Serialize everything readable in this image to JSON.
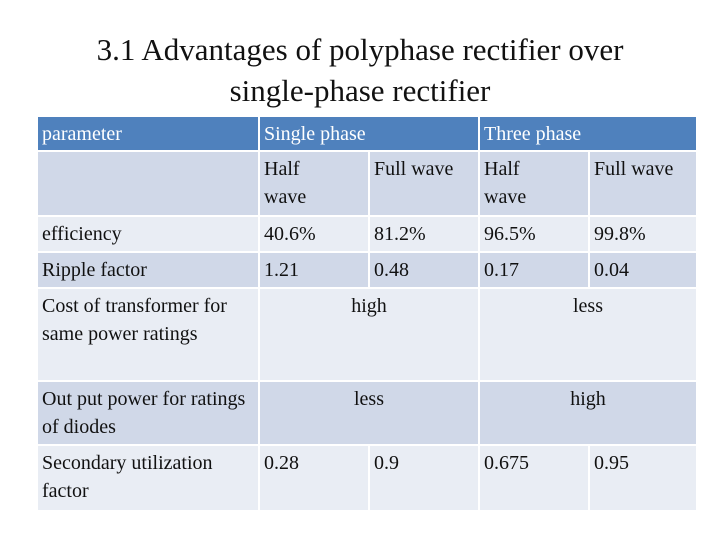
{
  "title": {
    "line1": "3.1 Advantages of polyphase rectifier over",
    "line2": "single-phase rectifier"
  },
  "table": {
    "header": [
      "parameter",
      "Single phase",
      "Three phase"
    ],
    "rows": [
      [
        "Half wave",
        "Full wave",
        "Half wave",
        "Full wave"
      ],
      [
        "efficiency",
        "40.6%",
        "81.2%",
        "96.5%",
        "99.8%"
      ],
      [
        "Ripple factor",
        "1.21",
        "0.48",
        "0.17",
        "0.04"
      ],
      [
        "Cost of transformer for same power ratings",
        "high",
        "less"
      ],
      [
        "Out put power for ratings of diodes",
        "less",
        "high"
      ],
      [
        "Secondary utilization factor",
        "0.28",
        "0.9",
        "0.675",
        "0.95"
      ]
    ]
  }
}
